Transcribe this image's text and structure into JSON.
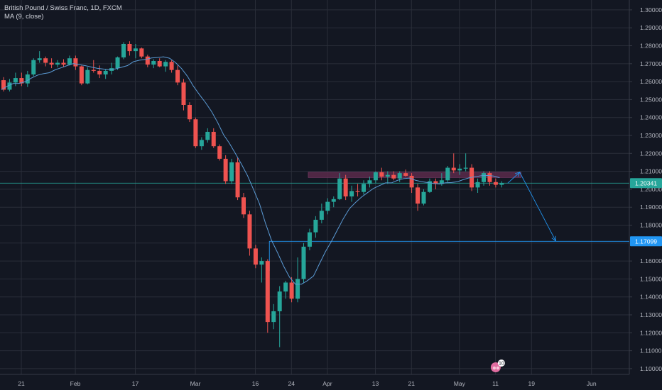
{
  "legend": {
    "symbol": "British Pound / Swiss Franc, 1D, FXCM",
    "indicator": "MA (9, close)"
  },
  "colors": {
    "background": "#131722",
    "grid": "#2a2e39",
    "up": "#26a69a",
    "down": "#ef5350",
    "ma": "#5b9bd5",
    "drawing": "#2196f3",
    "zone": "#5b2a4a",
    "axis_text": "#b2b5be"
  },
  "chart_data": {
    "type": "candlestick",
    "symbol": "British Pound / Swiss Franc",
    "timeframe": "1D",
    "exchange": "FXCM",
    "ylim": [
      1.0968,
      1.3055
    ],
    "y_ticks": [
      "1.30000",
      "1.29000",
      "1.28000",
      "1.27000",
      "1.26000",
      "1.25000",
      "1.24000",
      "1.23000",
      "1.22000",
      "1.21000",
      "1.20000",
      "1.19000",
      "1.18000",
      "1.17000",
      "1.16000",
      "1.15000",
      "1.14000",
      "1.13000",
      "1.12000",
      "1.11000",
      "1.10000"
    ],
    "x_ticks": [
      {
        "label": "21",
        "index": 0
      },
      {
        "label": "Feb",
        "index": 9
      },
      {
        "label": "17",
        "index": 19
      },
      {
        "label": "Mar",
        "index": 29
      },
      {
        "label": "16",
        "index": 39
      },
      {
        "label": "24",
        "index": 45
      },
      {
        "label": "Apr",
        "index": 51
      },
      {
        "label": "13",
        "index": 59
      },
      {
        "label": "21",
        "index": 65
      },
      {
        "label": "May",
        "index": 73
      },
      {
        "label": "11",
        "index": 79
      },
      {
        "label": "19",
        "index": 85
      },
      {
        "label": "Jun",
        "index": 95
      }
    ],
    "candles": [
      [
        1.2608,
        1.2625,
        1.2545,
        1.2555
      ],
      [
        1.2555,
        1.2615,
        1.2545,
        1.2595
      ],
      [
        1.2595,
        1.265,
        1.2575,
        1.262
      ],
      [
        1.262,
        1.265,
        1.2575,
        1.259
      ],
      [
        1.259,
        1.266,
        1.257,
        1.264
      ],
      [
        1.264,
        1.273,
        1.263,
        1.272
      ],
      [
        1.272,
        1.277,
        1.2705,
        1.273
      ],
      [
        1.273,
        1.274,
        1.2685,
        1.2705
      ],
      [
        1.2705,
        1.273,
        1.2675,
        1.2695
      ],
      [
        1.2695,
        1.272,
        1.268,
        1.2705
      ],
      [
        1.2705,
        1.2725,
        1.268,
        1.2695
      ],
      [
        1.2695,
        1.2745,
        1.269,
        1.273
      ],
      [
        1.273,
        1.2745,
        1.2665,
        1.2685
      ],
      [
        1.2685,
        1.269,
        1.258,
        1.259
      ],
      [
        1.259,
        1.268,
        1.2585,
        1.2665
      ],
      [
        1.2665,
        1.272,
        1.265,
        1.266
      ],
      [
        1.266,
        1.269,
        1.262,
        1.264
      ],
      [
        1.264,
        1.267,
        1.2615,
        1.266
      ],
      [
        1.266,
        1.2705,
        1.264,
        1.2675
      ],
      [
        1.2675,
        1.274,
        1.2665,
        1.2735
      ],
      [
        1.2735,
        1.282,
        1.2725,
        1.281
      ],
      [
        1.281,
        1.2825,
        1.2745,
        1.277
      ],
      [
        1.277,
        1.281,
        1.273,
        1.2785
      ],
      [
        1.2785,
        1.279,
        1.273,
        1.274
      ],
      [
        1.274,
        1.275,
        1.268,
        1.2695
      ],
      [
        1.2695,
        1.2725,
        1.2675,
        1.2715
      ],
      [
        1.2715,
        1.273,
        1.268,
        1.2685
      ],
      [
        1.2685,
        1.272,
        1.2655,
        1.271
      ],
      [
        1.271,
        1.272,
        1.265,
        1.2665
      ],
      [
        1.2665,
        1.269,
        1.258,
        1.2595
      ],
      [
        1.2595,
        1.2615,
        1.244,
        1.247
      ],
      [
        1.247,
        1.2485,
        1.2375,
        1.239
      ],
      [
        1.239,
        1.24,
        1.223,
        1.224
      ],
      [
        1.224,
        1.229,
        1.222,
        1.2275
      ],
      [
        1.2275,
        1.234,
        1.226,
        1.232
      ],
      [
        1.232,
        1.234,
        1.223,
        1.224
      ],
      [
        1.224,
        1.225,
        1.216,
        1.217
      ],
      [
        1.217,
        1.219,
        1.203,
        1.2045
      ],
      [
        1.2045,
        1.217,
        1.203,
        1.215
      ],
      [
        1.215,
        1.2175,
        1.194,
        1.1955
      ],
      [
        1.1955,
        1.198,
        1.184,
        1.186
      ],
      [
        1.186,
        1.188,
        1.163,
        1.167
      ],
      [
        1.167,
        1.169,
        1.156,
        1.158
      ],
      [
        1.158,
        1.162,
        1.148,
        1.16
      ],
      [
        1.16,
        1.161,
        1.12,
        1.126
      ],
      [
        1.126,
        1.136,
        1.122,
        1.132
      ],
      [
        1.132,
        1.146,
        1.112,
        1.143
      ],
      [
        1.143,
        1.149,
        1.139,
        1.148
      ],
      [
        1.148,
        1.151,
        1.137,
        1.139
      ],
      [
        1.139,
        1.162,
        1.137,
        1.15
      ],
      [
        1.15,
        1.17,
        1.148,
        1.168
      ],
      [
        1.168,
        1.178,
        1.166,
        1.176
      ],
      [
        1.176,
        1.185,
        1.173,
        1.183
      ],
      [
        1.183,
        1.192,
        1.181,
        1.188
      ],
      [
        1.188,
        1.195,
        1.186,
        1.193
      ],
      [
        1.193,
        1.196,
        1.19,
        1.1945
      ],
      [
        1.1945,
        1.209,
        1.194,
        1.206
      ],
      [
        1.206,
        1.208,
        1.194,
        1.196
      ],
      [
        1.196,
        1.202,
        1.193,
        1.199
      ],
      [
        1.199,
        1.203,
        1.196,
        1.1985
      ],
      [
        1.1985,
        1.205,
        1.197,
        1.203
      ],
      [
        1.203,
        1.207,
        1.201,
        1.205
      ],
      [
        1.205,
        1.21,
        1.2035,
        1.2095
      ],
      [
        1.2095,
        1.212,
        1.205,
        1.207
      ],
      [
        1.207,
        1.21,
        1.203,
        1.208
      ],
      [
        1.208,
        1.21,
        1.205,
        1.206
      ],
      [
        1.206,
        1.21,
        1.204,
        1.209
      ],
      [
        1.209,
        1.211,
        1.207,
        1.2075
      ],
      [
        1.2075,
        1.209,
        1.198,
        1.201
      ],
      [
        1.201,
        1.203,
        1.188,
        1.192
      ],
      [
        1.192,
        1.2,
        1.191,
        1.1985
      ],
      [
        1.1985,
        1.206,
        1.198,
        1.2045
      ],
      [
        1.2045,
        1.206,
        1.2,
        1.203
      ],
      [
        1.203,
        1.209,
        1.202,
        1.205
      ],
      [
        1.205,
        1.213,
        1.204,
        1.212
      ],
      [
        1.212,
        1.22,
        1.209,
        1.2105
      ],
      [
        1.2105,
        1.214,
        1.208,
        1.2115
      ],
      [
        1.2115,
        1.22,
        1.21,
        1.212
      ],
      [
        1.212,
        1.214,
        1.199,
        1.201
      ],
      [
        1.201,
        1.206,
        1.198,
        1.204
      ],
      [
        1.204,
        1.21,
        1.202,
        1.209
      ],
      [
        1.209,
        1.21,
        1.202,
        1.204
      ],
      [
        1.204,
        1.206,
        1.201,
        1.2025
      ],
      [
        1.2025,
        1.2045,
        1.201,
        1.2034
      ]
    ],
    "ma": {
      "name": "MA (9, close)",
      "period": 9
    },
    "price_labels": [
      {
        "value": 1.20341,
        "text": "1.20341",
        "color": "#26a69a"
      },
      {
        "value": 1.17099,
        "text": "1.17099",
        "color": "#2196f3"
      }
    ],
    "horizontal_line": {
      "value": 1.2034
    },
    "zone": {
      "from_index": 51,
      "to_index": 86,
      "low": 1.2065,
      "high": 1.2095
    },
    "support_line": {
      "value": 1.17099,
      "from_index": 45
    },
    "projection": [
      {
        "index": 84,
        "price": 1.2034
      },
      {
        "index": 86,
        "price": 1.2095
      },
      {
        "index": 92,
        "price": 1.1712
      }
    ],
    "badge": {
      "text": "10",
      "index": 82
    }
  }
}
